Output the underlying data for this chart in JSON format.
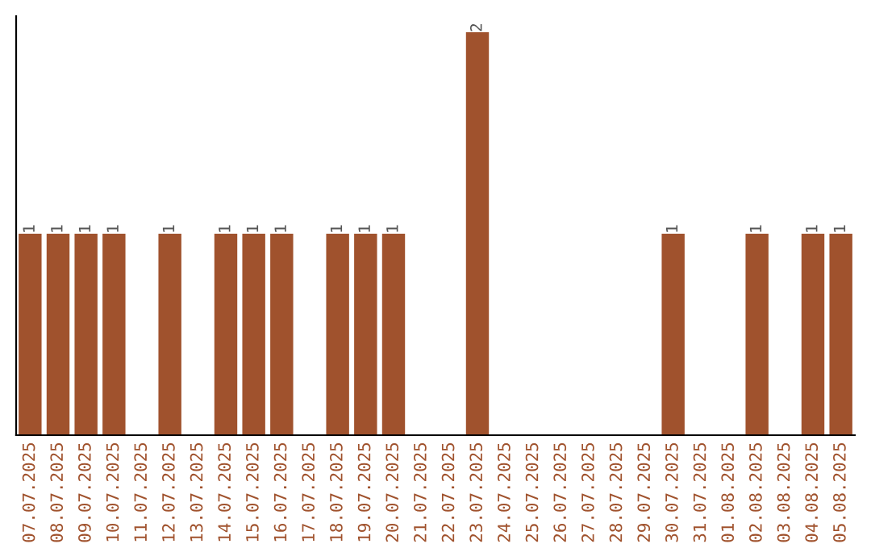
{
  "chart_data": {
    "type": "bar",
    "categories": [
      "07.07.2025",
      "08.07.2025",
      "09.07.2025",
      "10.07.2025",
      "11.07.2025",
      "12.07.2025",
      "13.07.2025",
      "14.07.2025",
      "15.07.2025",
      "16.07.2025",
      "17.07.2025",
      "18.07.2025",
      "19.07.2025",
      "20.07.2025",
      "21.07.2025",
      "22.07.2025",
      "23.07.2025",
      "24.07.2025",
      "25.07.2025",
      "26.07.2025",
      "27.07.2025",
      "28.07.2025",
      "29.07.2025",
      "30.07.2025",
      "31.07.2025",
      "01.08.2025",
      "02.08.2025",
      "03.08.2025",
      "04.08.2025",
      "05.08.2025"
    ],
    "values": [
      1,
      1,
      1,
      1,
      0,
      1,
      0,
      1,
      1,
      1,
      0,
      1,
      1,
      1,
      0,
      0,
      2,
      0,
      0,
      0,
      0,
      0,
      0,
      1,
      0,
      0,
      1,
      0,
      1,
      1
    ],
    "value_labels": [
      "1",
      "1",
      "1",
      "1",
      null,
      "1",
      null,
      "1",
      "1",
      "1",
      null,
      "1",
      "1",
      "1",
      null,
      null,
      "2",
      null,
      null,
      null,
      null,
      null,
      null,
      "1",
      null,
      null,
      "1",
      null,
      "1",
      "1"
    ],
    "color": "#a0522d",
    "ylim": [
      0,
      2.08
    ],
    "tick_labels": "x",
    "grid": false,
    "legend": false
  }
}
